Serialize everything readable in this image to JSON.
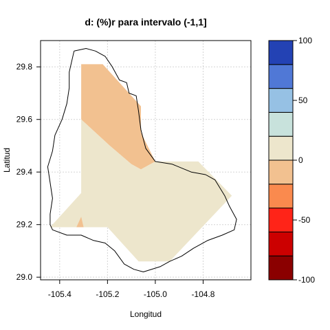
{
  "title": "d:   (%)r para intervalo (-1,1]",
  "axes": {
    "xlabel": "Longitud",
    "ylabel": "Latitud",
    "xlim": [
      -105.48,
      -104.6
    ],
    "ylim": [
      28.99,
      29.9
    ],
    "xticks": [
      -105.4,
      -105.2,
      -105.0,
      -104.8
    ],
    "xtick_labels": [
      "-105.4",
      "-105.2",
      "-105.0",
      "-104.8"
    ],
    "yticks": [
      29.0,
      29.2,
      29.4,
      29.6,
      29.8
    ],
    "ytick_labels": [
      "29.0",
      "29.2",
      "29.4",
      "29.6",
      "29.8"
    ],
    "grid": true
  },
  "regions": [
    {
      "id": "orange-north",
      "class_range": "(-25,0]",
      "color": "#f2c190",
      "polygon": [
        [
          -105.31,
          29.81
        ],
        [
          -105.22,
          29.81
        ],
        [
          -105.14,
          29.73
        ],
        [
          -105.06,
          29.65
        ],
        [
          -105.06,
          29.55
        ],
        [
          -105.0,
          29.44
        ],
        [
          -105.06,
          29.41
        ],
        [
          -105.1,
          29.43
        ],
        [
          -105.19,
          29.5
        ],
        [
          -105.31,
          29.6
        ]
      ]
    },
    {
      "id": "beige-main",
      "class_range": "(0,25]",
      "color": "#ede6cc",
      "polygon": [
        [
          -105.31,
          29.6
        ],
        [
          -105.19,
          29.5
        ],
        [
          -105.1,
          29.43
        ],
        [
          -105.06,
          29.41
        ],
        [
          -105.0,
          29.44
        ],
        [
          -104.82,
          29.44
        ],
        [
          -104.68,
          29.31
        ],
        [
          -104.94,
          29.06
        ],
        [
          -105.07,
          29.06
        ],
        [
          -105.2,
          29.19
        ],
        [
          -105.44,
          29.19
        ],
        [
          -105.31,
          29.32
        ]
      ]
    },
    {
      "id": "orange-sliver",
      "class_range": "(-25,0]",
      "color": "#f2c190",
      "polygon": [
        [
          -105.33,
          29.19
        ],
        [
          -105.3,
          29.19
        ],
        [
          -105.31,
          29.23
        ]
      ]
    }
  ],
  "boundary": [
    [
      -105.34,
      29.86
    ],
    [
      -105.29,
      29.87
    ],
    [
      -105.25,
      29.86
    ],
    [
      -105.21,
      29.84
    ],
    [
      -105.18,
      29.8
    ],
    [
      -105.15,
      29.75
    ],
    [
      -105.12,
      29.74
    ],
    [
      -105.11,
      29.7
    ],
    [
      -105.08,
      29.69
    ],
    [
      -105.07,
      29.63
    ],
    [
      -105.06,
      29.56
    ],
    [
      -105.04,
      29.49
    ],
    [
      -105.0,
      29.44
    ],
    [
      -104.93,
      29.43
    ],
    [
      -104.85,
      29.4
    ],
    [
      -104.79,
      29.39
    ],
    [
      -104.75,
      29.37
    ],
    [
      -104.71,
      29.31
    ],
    [
      -104.69,
      29.27
    ],
    [
      -104.66,
      29.22
    ],
    [
      -104.67,
      29.18
    ],
    [
      -104.72,
      29.16
    ],
    [
      -104.78,
      29.14
    ],
    [
      -104.84,
      29.11
    ],
    [
      -104.89,
      29.08
    ],
    [
      -104.94,
      29.06
    ],
    [
      -104.98,
      29.04
    ],
    [
      -105.05,
      29.02
    ],
    [
      -105.09,
      29.03
    ],
    [
      -105.13,
      29.05
    ],
    [
      -105.17,
      29.1
    ],
    [
      -105.21,
      29.13
    ],
    [
      -105.26,
      29.14
    ],
    [
      -105.31,
      29.16
    ],
    [
      -105.37,
      29.16
    ],
    [
      -105.43,
      29.18
    ],
    [
      -105.44,
      29.2
    ],
    [
      -105.44,
      29.24
    ],
    [
      -105.43,
      29.3
    ],
    [
      -105.44,
      29.36
    ],
    [
      -105.45,
      29.42
    ],
    [
      -105.43,
      29.48
    ],
    [
      -105.42,
      29.54
    ],
    [
      -105.39,
      29.6
    ],
    [
      -105.37,
      29.66
    ],
    [
      -105.36,
      29.72
    ],
    [
      -105.36,
      29.78
    ],
    [
      -105.34,
      29.86
    ]
  ],
  "colorbar": {
    "classes": [
      {
        "range": "(-100,-75]",
        "color": "#8b0000"
      },
      {
        "range": "(-75,-50]",
        "color": "#cc0000"
      },
      {
        "range": "(-50,-37.5]",
        "color": "#ff2418"
      },
      {
        "range": "(-37.5,-25]",
        "color": "#fa8a4e"
      },
      {
        "range": "(-25,0]",
        "color": "#f2c190"
      },
      {
        "range": "(0,25]",
        "color": "#ede6cc"
      },
      {
        "range": "(25,37.5]",
        "color": "#c8e2dc"
      },
      {
        "range": "(37.5,50]",
        "color": "#96c1e4"
      },
      {
        "range": "(50,75]",
        "color": "#5078d6"
      },
      {
        "range": "(75,100]",
        "color": "#2342b4"
      }
    ],
    "tick_labels": [
      "-100",
      "-50",
      "0",
      "50",
      "100"
    ]
  }
}
